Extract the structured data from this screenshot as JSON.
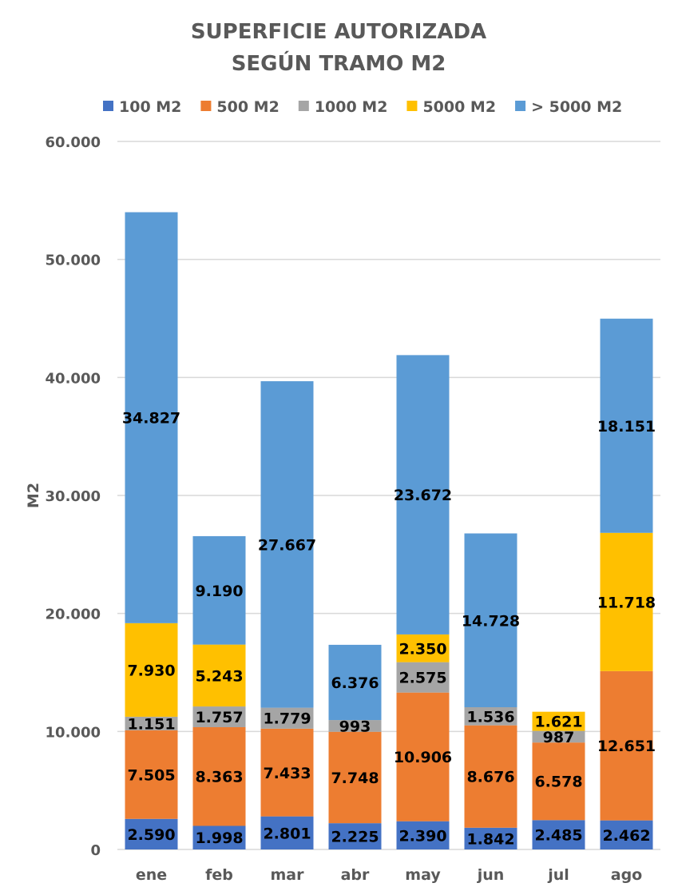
{
  "chart_data": {
    "type": "bar",
    "stacked": true,
    "title": "SUPERFICIE AUTORIZADA",
    "subtitle": "SEGÚN  TRAMO M2",
    "xlabel": "",
    "ylabel": "M2",
    "ylim": [
      0,
      60000
    ],
    "yticks": [
      0,
      10000,
      20000,
      30000,
      40000,
      50000,
      60000
    ],
    "ytick_labels": [
      "0",
      "10.000",
      "20.000",
      "30.000",
      "40.000",
      "50.000",
      "60.000"
    ],
    "grid": true,
    "legend_position": "top",
    "categories": [
      "ene",
      "feb",
      "mar",
      "abr",
      "may",
      "jun",
      "jul",
      "ago"
    ],
    "series": [
      {
        "name": "100 M2",
        "color": "#4472C4",
        "values": [
          2590,
          1998,
          2801,
          2225,
          2390,
          1842,
          2485,
          2462
        ],
        "labels": [
          "2.590",
          "1.998",
          "2.801",
          "2.225",
          "2.390",
          "1.842",
          "2.485",
          "2.462"
        ]
      },
      {
        "name": "500 M2",
        "color": "#ED7D31",
        "values": [
          7505,
          8363,
          7433,
          7748,
          10906,
          8676,
          6578,
          12651
        ],
        "labels": [
          "7.505",
          "8.363",
          "7.433",
          "7.748",
          "10.906",
          "8.676",
          "6.578",
          "12.651"
        ]
      },
      {
        "name": "1000 M2",
        "color": "#A5A5A5",
        "values": [
          1151,
          1757,
          1779,
          993,
          2575,
          1536,
          987,
          0
        ],
        "labels": [
          "1.151",
          "1.757",
          "1.779",
          "993",
          "2.575",
          "1.536",
          "987",
          ""
        ]
      },
      {
        "name": "5000 M2",
        "color": "#FFC000",
        "values": [
          7930,
          5243,
          0,
          0,
          2350,
          0,
          1621,
          11718
        ],
        "labels": [
          "7.930",
          "5.243",
          "",
          "",
          "2.350",
          "",
          "1.621",
          "11.718"
        ]
      },
      {
        "name": "> 5000 M2",
        "color": "#5B9BD5",
        "values": [
          34827,
          9190,
          27667,
          6376,
          23672,
          14728,
          0,
          18151
        ],
        "labels": [
          "34.827",
          "9.190",
          "27.667",
          "6.376",
          "23.672",
          "14.728",
          "",
          "18.151"
        ]
      }
    ]
  }
}
